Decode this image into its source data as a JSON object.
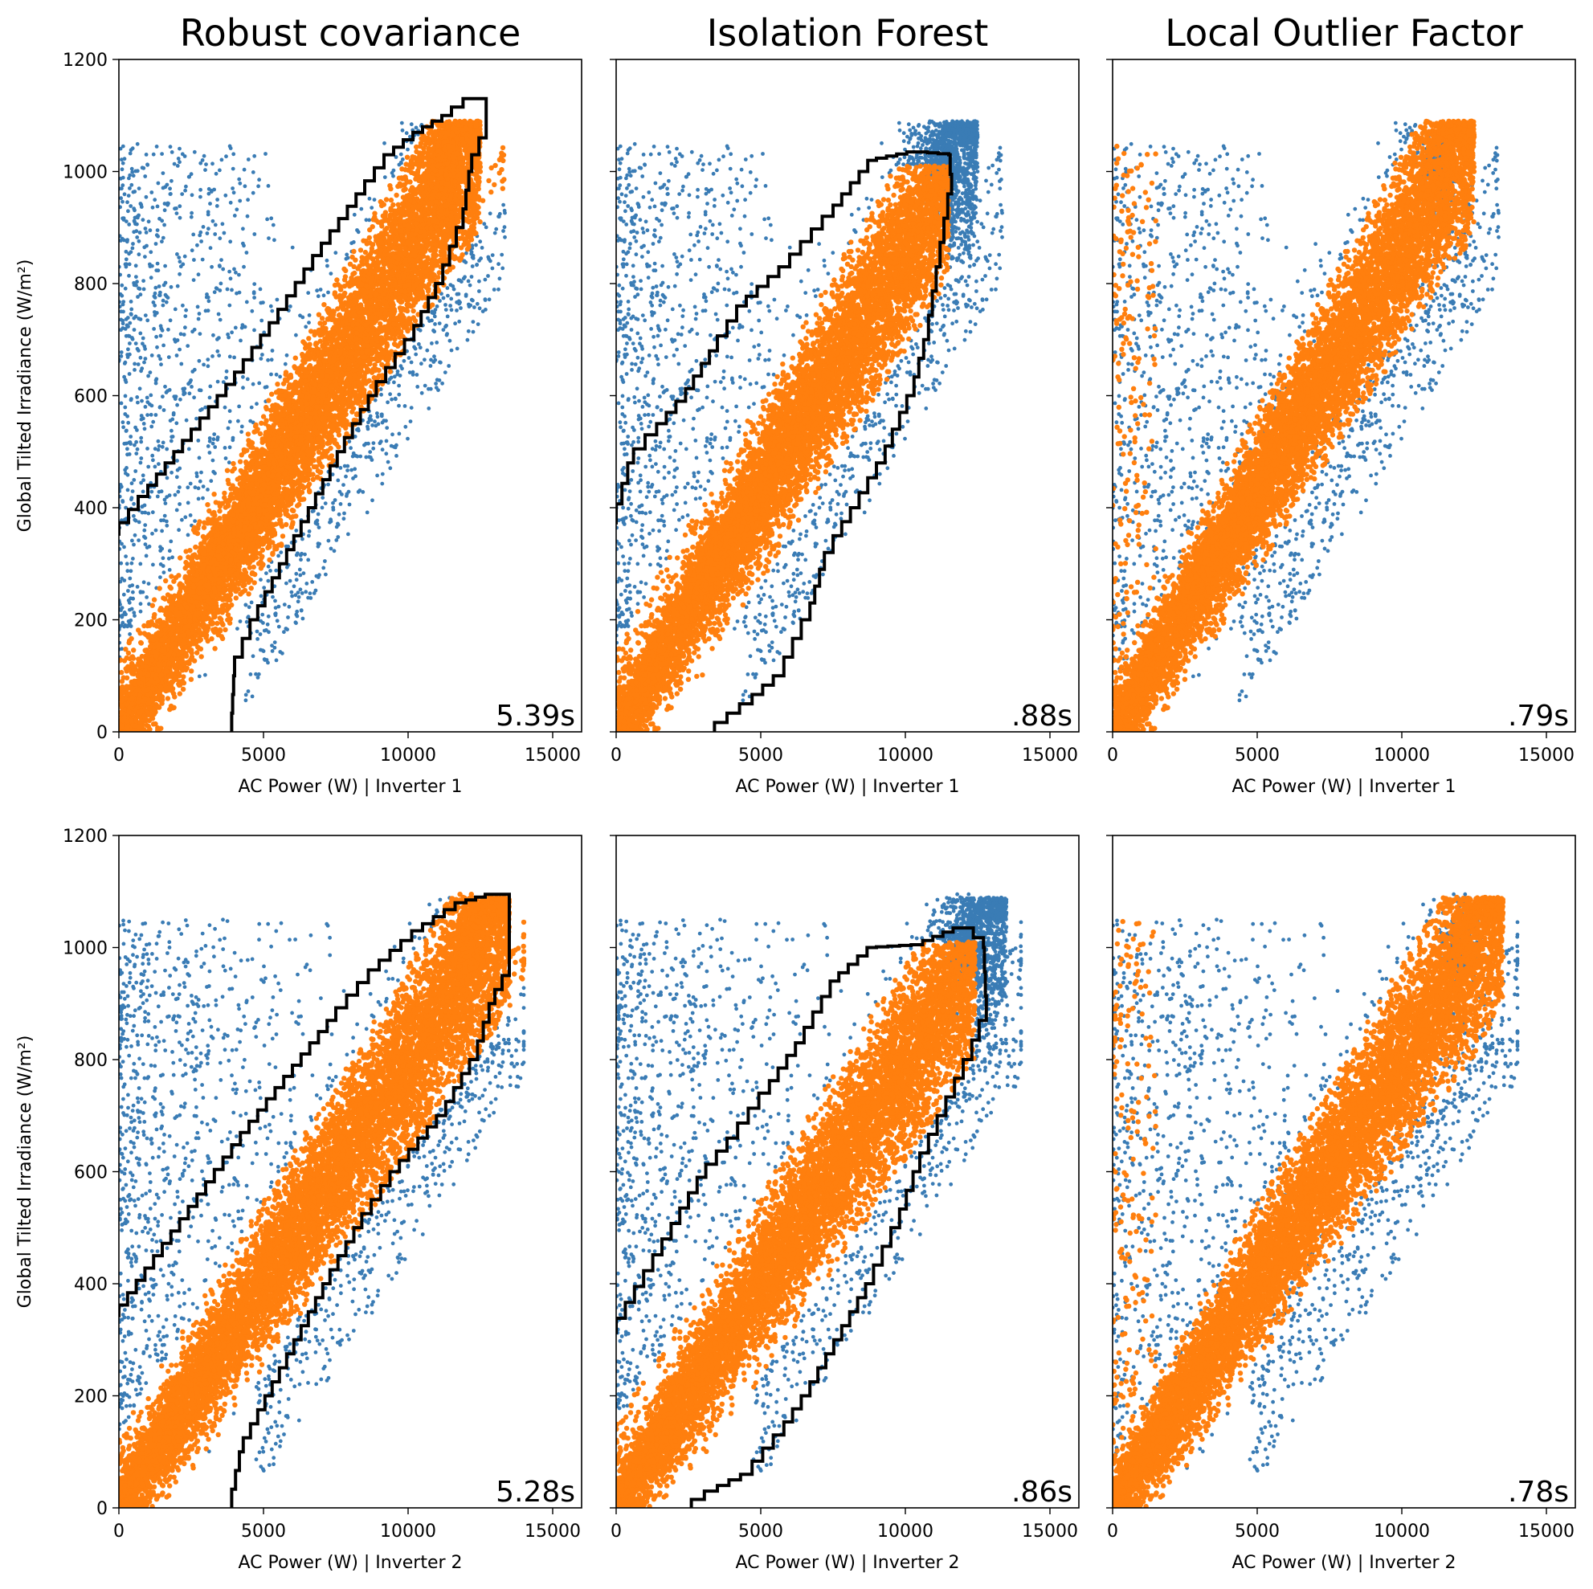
{
  "colors": {
    "inlier": "#ff7f0e",
    "outlier": "#3a7cb5",
    "boundary": "#000000"
  },
  "chart_data": [
    {
      "type": "scatter",
      "row": 0,
      "col": 0,
      "title": "Robust covariance",
      "xlabel": "AC Power (W) | Inverter 1",
      "ylabel": "Global Tilted Irradiance (W/m²)",
      "timing": "5.39s",
      "method": "robust",
      "xlim": [
        0,
        16000
      ],
      "ylim": [
        0,
        1200
      ],
      "xticks": [
        0,
        5000,
        10000,
        15000
      ],
      "xtick_labels": [
        "0",
        "5000",
        "10000",
        "15000"
      ],
      "yticks": [
        0,
        200,
        400,
        600,
        800,
        1000,
        1200
      ],
      "ytick_labels": [
        "0",
        "200",
        "400",
        "600",
        "800",
        "1000",
        "1200"
      ],
      "series": [
        {
          "role": "outlier"
        },
        {
          "role": "inlier"
        }
      ],
      "boundary": [
        [
          3900,
          0
        ],
        [
          4000,
          100
        ],
        [
          4800,
          200
        ],
        [
          5800,
          300
        ],
        [
          6800,
          400
        ],
        [
          7800,
          500
        ],
        [
          8900,
          600
        ],
        [
          10200,
          700
        ],
        [
          11200,
          800
        ],
        [
          11900,
          900
        ],
        [
          12200,
          1000
        ],
        [
          12700,
          1060
        ],
        [
          12700,
          1120
        ],
        [
          12300,
          1130
        ],
        [
          11500,
          1100
        ],
        [
          10500,
          1070
        ],
        [
          9500,
          1030
        ],
        [
          8500,
          960
        ],
        [
          7000,
          850
        ],
        [
          5500,
          730
        ],
        [
          4000,
          620
        ],
        [
          2500,
          520
        ],
        [
          1000,
          420
        ],
        [
          0,
          350
        ]
      ]
    },
    {
      "type": "scatter",
      "row": 0,
      "col": 1,
      "title": "Isolation Forest",
      "xlabel": "AC Power (W) | Inverter 1",
      "ylabel": "",
      "timing": ".88s",
      "method": "iforest",
      "xlim": [
        0,
        16000
      ],
      "ylim": [
        0,
        1200
      ],
      "xticks": [
        0,
        5000,
        10000,
        15000
      ],
      "xtick_labels": [
        "0",
        "5000",
        "10000",
        "15000"
      ],
      "yticks": [
        0,
        200,
        400,
        600,
        800,
        1000,
        1200
      ],
      "ytick_labels": [],
      "series": [
        {
          "role": "outlier"
        },
        {
          "role": "inlier"
        }
      ],
      "boundary": [
        [
          3400,
          0
        ],
        [
          4700,
          50
        ],
        [
          5800,
          100
        ],
        [
          6700,
          200
        ],
        [
          7200,
          290
        ],
        [
          7800,
          350
        ],
        [
          8400,
          400
        ],
        [
          9300,
          480
        ],
        [
          10300,
          600
        ],
        [
          10800,
          700
        ],
        [
          11200,
          830
        ],
        [
          11600,
          960
        ],
        [
          11500,
          1030
        ],
        [
          10400,
          1035
        ],
        [
          9000,
          1020
        ],
        [
          7500,
          920
        ],
        [
          6000,
          830
        ],
        [
          4500,
          760
        ],
        [
          3500,
          680
        ],
        [
          2400,
          590
        ],
        [
          1400,
          530
        ],
        [
          600,
          480
        ],
        [
          0,
          370
        ]
      ]
    },
    {
      "type": "scatter",
      "row": 0,
      "col": 2,
      "title": "Local Outlier Factor",
      "xlabel": "AC Power (W) | Inverter 1",
      "ylabel": "",
      "timing": ".79s",
      "method": "lof",
      "xlim": [
        0,
        16000
      ],
      "ylim": [
        0,
        1200
      ],
      "xticks": [
        0,
        5000,
        10000,
        15000
      ],
      "xtick_labels": [
        "0",
        "5000",
        "10000",
        "15000"
      ],
      "yticks": [
        0,
        200,
        400,
        600,
        800,
        1000,
        1200
      ],
      "ytick_labels": [],
      "series": [
        {
          "role": "outlier"
        },
        {
          "role": "inlier"
        }
      ],
      "boundary": []
    },
    {
      "type": "scatter",
      "row": 1,
      "col": 0,
      "title": "",
      "xlabel": "AC Power (W) | Inverter 2",
      "ylabel": "Global Tilted Irradiance (W/m²)",
      "timing": "5.28s",
      "method": "robust",
      "xlim": [
        0,
        16000
      ],
      "ylim": [
        0,
        1200
      ],
      "xticks": [
        0,
        5000,
        10000,
        15000
      ],
      "xtick_labels": [
        "0",
        "5000",
        "10000",
        "15000"
      ],
      "yticks": [
        0,
        200,
        400,
        600,
        800,
        1000,
        1200
      ],
      "ytick_labels": [
        "0",
        "200",
        "400",
        "600",
        "800",
        "1000",
        "1200"
      ],
      "series": [
        {
          "role": "outlier"
        },
        {
          "role": "inlier"
        }
      ],
      "boundary": [
        [
          3900,
          0
        ],
        [
          4300,
          100
        ],
        [
          5300,
          200
        ],
        [
          6300,
          300
        ],
        [
          7300,
          400
        ],
        [
          8400,
          500
        ],
        [
          9700,
          600
        ],
        [
          11300,
          700
        ],
        [
          12400,
          800
        ],
        [
          13000,
          900
        ],
        [
          13500,
          950
        ],
        [
          13500,
          1080
        ],
        [
          13000,
          1095
        ],
        [
          12000,
          1080
        ],
        [
          10500,
          1030
        ],
        [
          9000,
          960
        ],
        [
          7500,
          870
        ],
        [
          6000,
          770
        ],
        [
          4500,
          670
        ],
        [
          3000,
          560
        ],
        [
          1500,
          450
        ],
        [
          0,
          340
        ]
      ]
    },
    {
      "type": "scatter",
      "row": 1,
      "col": 1,
      "title": "",
      "xlabel": "AC Power (W) | Inverter 2",
      "ylabel": "",
      "timing": ".86s",
      "method": "iforest",
      "xlim": [
        0,
        16000
      ],
      "ylim": [
        0,
        1200
      ],
      "xticks": [
        0,
        5000,
        10000,
        15000
      ],
      "xtick_labels": [
        "0",
        "5000",
        "10000",
        "15000"
      ],
      "yticks": [
        0,
        200,
        400,
        600,
        800,
        1000,
        1200
      ],
      "ytick_labels": [],
      "series": [
        {
          "role": "outlier"
        },
        {
          "role": "inlier"
        }
      ],
      "boundary": [
        [
          2600,
          0
        ],
        [
          3500,
          30
        ],
        [
          4700,
          60
        ],
        [
          5800,
          130
        ],
        [
          6700,
          200
        ],
        [
          7800,
          300
        ],
        [
          8900,
          400
        ],
        [
          9800,
          500
        ],
        [
          10500,
          600
        ],
        [
          11400,
          700
        ],
        [
          12300,
          800
        ],
        [
          12800,
          870
        ],
        [
          12700,
          1000
        ],
        [
          12000,
          1035
        ],
        [
          10600,
          1005
        ],
        [
          9000,
          1000
        ],
        [
          7700,
          940
        ],
        [
          6500,
          830
        ],
        [
          5300,
          740
        ],
        [
          4200,
          660
        ],
        [
          3100,
          590
        ],
        [
          1900,
          480
        ],
        [
          0,
          310
        ]
      ]
    },
    {
      "type": "scatter",
      "row": 1,
      "col": 2,
      "title": "",
      "xlabel": "AC Power (W) | Inverter 2",
      "ylabel": "",
      "timing": ".78s",
      "method": "lof",
      "xlim": [
        0,
        16000
      ],
      "ylim": [
        0,
        1200
      ],
      "xticks": [
        0,
        5000,
        10000,
        15000
      ],
      "xtick_labels": [
        "0",
        "5000",
        "10000",
        "15000"
      ],
      "yticks": [
        0,
        200,
        400,
        600,
        800,
        1000,
        1200
      ],
      "ytick_labels": [],
      "series": [
        {
          "role": "outlier"
        },
        {
          "role": "inlier"
        }
      ],
      "boundary": []
    }
  ]
}
